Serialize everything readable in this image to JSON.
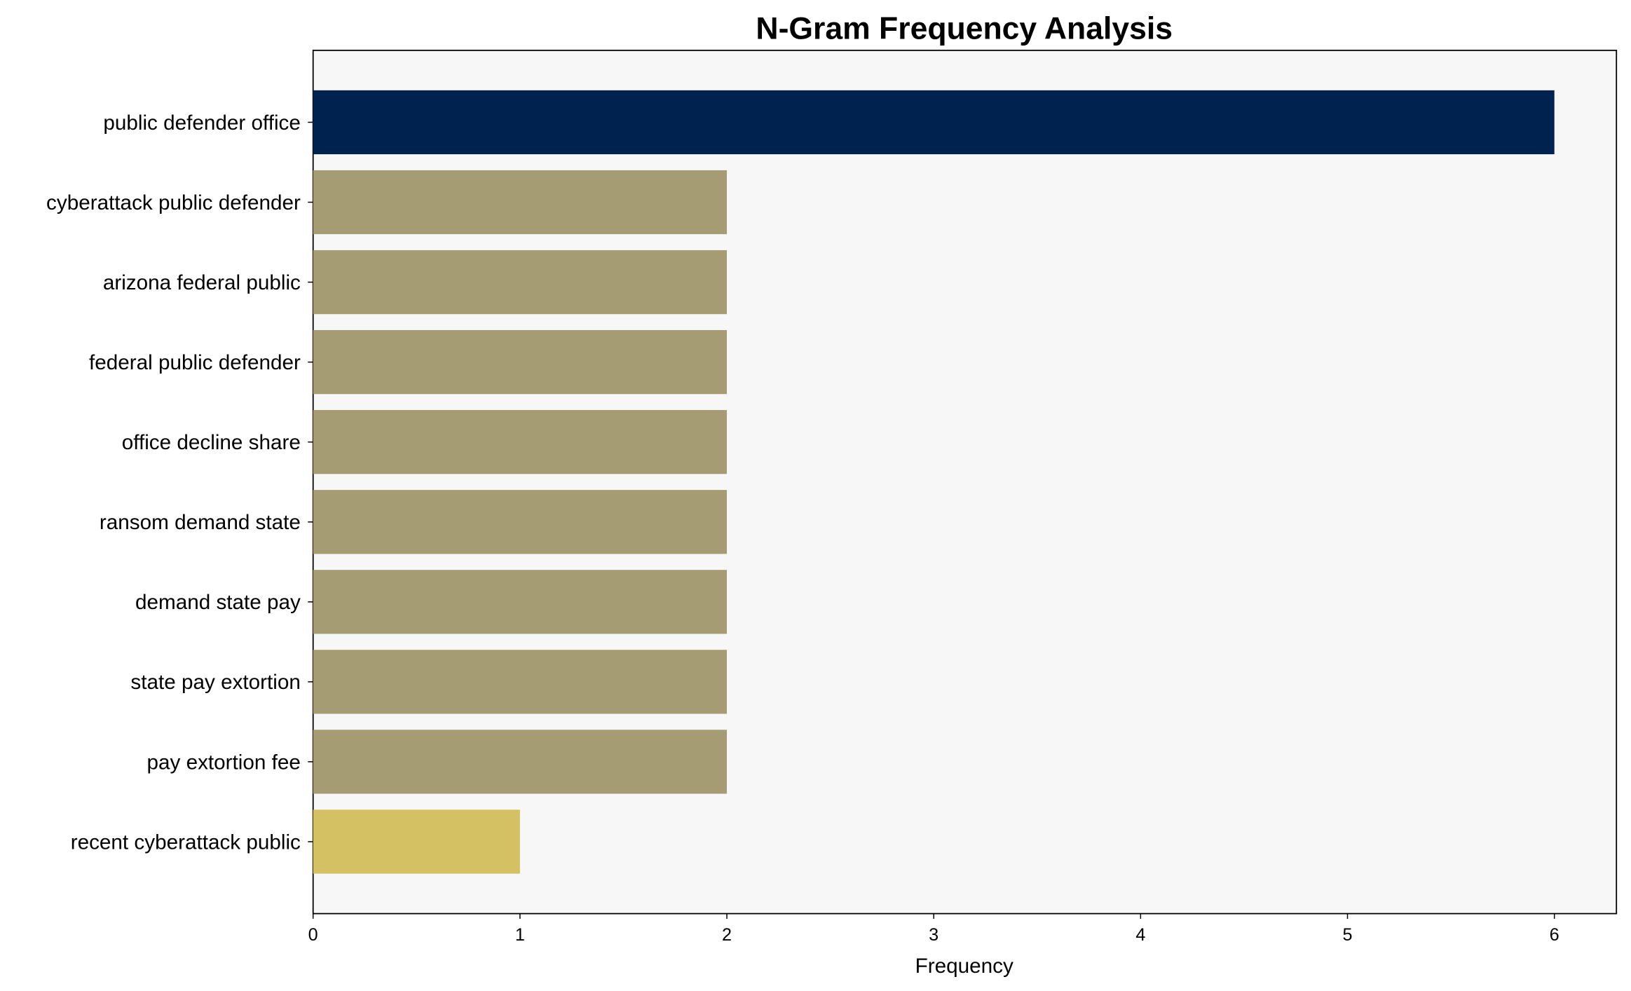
{
  "chart_data": {
    "type": "bar",
    "orientation": "horizontal",
    "title": "N-Gram Frequency Analysis",
    "xlabel": "Frequency",
    "ylabel": "",
    "categories": [
      "public defender office",
      "cyberattack public defender",
      "arizona federal public",
      "federal public defender",
      "office decline share",
      "ransom demand state",
      "demand state pay",
      "state pay extortion",
      "pay extortion fee",
      "recent cyberattack public"
    ],
    "values": [
      6,
      2,
      2,
      2,
      2,
      2,
      2,
      2,
      2,
      1
    ],
    "colors": [
      "#00224e",
      "#a59c74",
      "#a59c74",
      "#a59c74",
      "#a59c74",
      "#a59c74",
      "#a59c74",
      "#a59c74",
      "#a59c74",
      "#d3c164"
    ],
    "xlim": [
      0,
      6.3
    ],
    "xticks": [
      "0",
      "1",
      "2",
      "3",
      "4",
      "5",
      "6"
    ],
    "grid": false,
    "plot_background": "#f7f7f7"
  }
}
